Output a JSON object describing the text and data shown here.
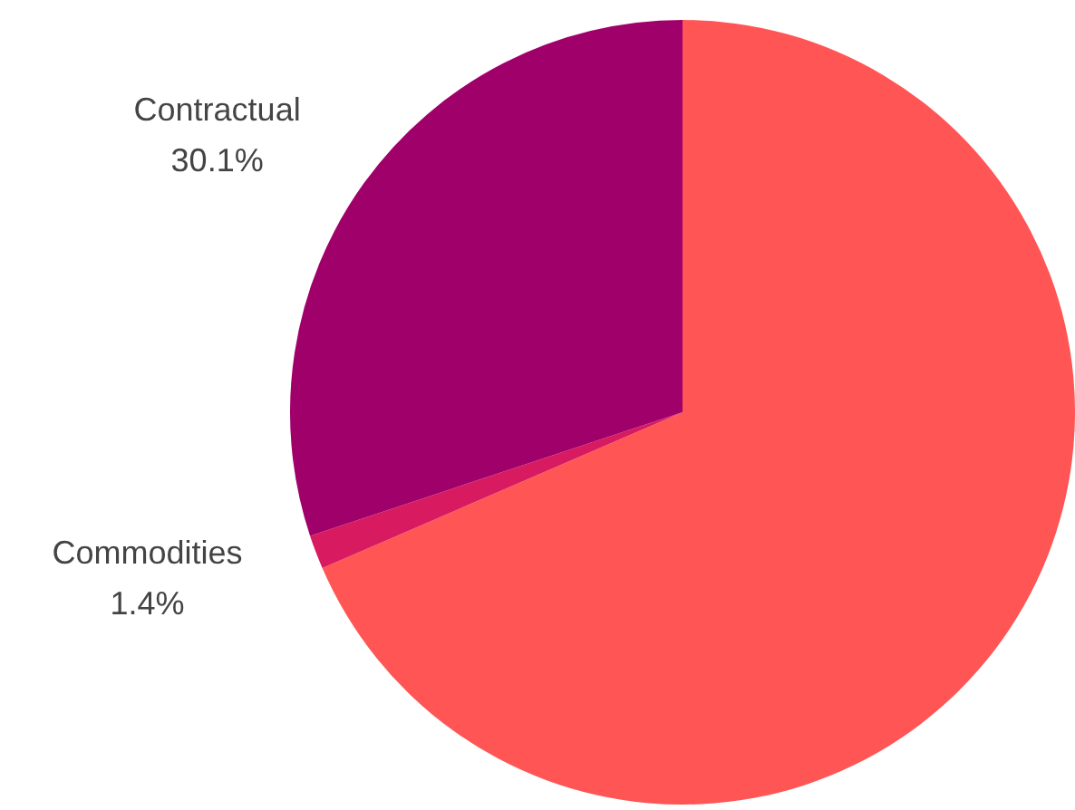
{
  "chart_data": {
    "type": "pie",
    "categories": [
      null,
      "Commodities",
      "Contractual"
    ],
    "values": [
      68.5,
      1.4,
      30.1
    ],
    "colors": [
      "#ff5555",
      "#d81b60",
      "#a0006a"
    ],
    "value_labels": [
      null,
      "1.4%",
      "30.1%"
    ],
    "legend": false
  }
}
